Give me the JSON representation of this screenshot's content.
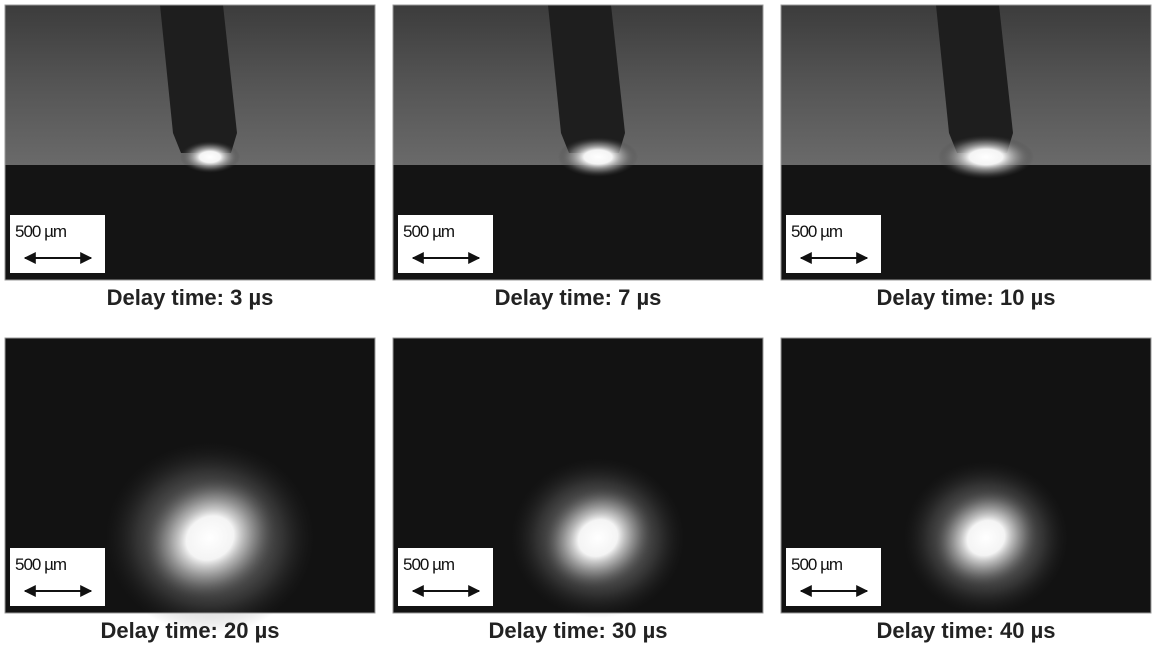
{
  "panels": [
    {
      "scale_bar": "500 µm",
      "caption": "Delay time: 3 µs"
    },
    {
      "scale_bar": "500 µm",
      "caption": "Delay time: 7 µs"
    },
    {
      "scale_bar": "500 µm",
      "caption": "Delay time: 10 µs"
    },
    {
      "scale_bar": "500 µm",
      "caption": "Delay time: 20 µs"
    },
    {
      "scale_bar": "500 µm",
      "caption": "Delay time: 30 µs"
    },
    {
      "scale_bar": "500 µm",
      "caption": "Delay time: 40 µs"
    }
  ]
}
